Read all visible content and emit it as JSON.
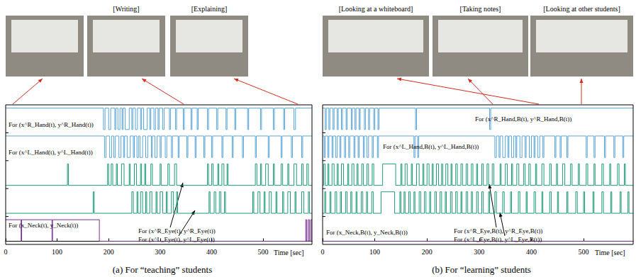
{
  "chart_data": [
    {
      "type": "line",
      "title": "(a) For “teaching” students",
      "xlabel": "Time [sec]",
      "photo_labels": [
        "[Writing]",
        "[Explaining]"
      ],
      "xlim": [
        0,
        595
      ],
      "xticks": [
        0,
        100,
        200,
        300,
        400,
        500
      ],
      "ylim": [
        -0.15,
        1.15
      ],
      "tick_labels": "x",
      "line_style": "step",
      "grid": false,
      "series": [
        {
          "name": "For (x^R_Hand(t), y^R_Hand(t))",
          "color": "#5aa5d6",
          "x": [
            0,
            190,
            193,
            200,
            204,
            212,
            214,
            218,
            222,
            226,
            228,
            232,
            240,
            245,
            247,
            252,
            256,
            262,
            264,
            268,
            275,
            280,
            282,
            288,
            291,
            296,
            298,
            305,
            308,
            318,
            320,
            330,
            332,
            345,
            347,
            360,
            362,
            372,
            374,
            392,
            394,
            410,
            412,
            428,
            430,
            445,
            447,
            470,
            472,
            495,
            497,
            520,
            522,
            540,
            542,
            560,
            563,
            595
          ],
          "values": [
            1,
            0,
            1,
            0,
            1,
            0,
            1,
            0,
            1,
            0,
            1,
            0,
            1,
            0,
            1,
            0,
            1,
            0,
            1,
            0,
            1,
            0,
            1,
            0,
            1,
            0,
            1,
            0,
            1,
            0,
            1,
            0,
            1,
            0,
            1,
            0,
            1,
            0,
            1,
            0,
            1,
            0,
            1,
            0,
            1,
            0,
            1,
            0,
            1,
            0,
            1,
            0,
            1,
            0,
            1,
            0,
            1,
            1
          ]
        },
        {
          "name": "For (x^L_Hand(t), y^L_Hand(t))",
          "color": "#5aa5d6",
          "x": [
            0,
            192,
            195,
            202,
            206,
            210,
            213,
            220,
            224,
            229,
            231,
            236,
            242,
            248,
            250,
            255,
            258,
            261,
            266,
            272,
            276,
            283,
            285,
            290,
            294,
            300,
            302,
            310,
            313,
            322,
            324,
            335,
            337,
            352,
            354,
            368,
            370,
            385,
            387,
            400,
            402,
            420,
            422,
            440,
            442,
            460,
            462,
            485,
            487,
            510,
            512,
            535,
            537,
            555,
            557,
            575,
            577,
            595
          ],
          "values": [
            1,
            0,
            1,
            0,
            1,
            0,
            1,
            0,
            1,
            0,
            1,
            0,
            1,
            0,
            1,
            0,
            1,
            0,
            1,
            0,
            1,
            0,
            1,
            0,
            1,
            0,
            1,
            0,
            1,
            0,
            1,
            0,
            1,
            0,
            1,
            0,
            1,
            0,
            1,
            0,
            1,
            0,
            1,
            0,
            1,
            0,
            1,
            0,
            1,
            0,
            1,
            0,
            1,
            0,
            1,
            0,
            1,
            1
          ]
        },
        {
          "name": "For (x^R_Eye(t), y^R_Eye(t))",
          "color": "#1f9a78",
          "x": [
            0,
            120,
            122,
            198,
            200,
            205,
            208,
            215,
            217,
            225,
            230,
            240,
            242,
            250,
            254,
            262,
            264,
            270,
            272,
            282,
            285,
            300,
            302,
            315,
            318,
            328,
            332,
            392,
            394,
            400,
            403,
            412,
            414,
            420,
            424,
            430,
            432,
            485,
            488,
            495,
            497,
            505,
            510,
            520,
            522,
            535,
            538,
            548,
            550,
            560,
            565,
            575,
            578,
            585,
            588,
            595
          ],
          "values": [
            0,
            1,
            0,
            1,
            0,
            1,
            0,
            1,
            0,
            1,
            0,
            1,
            0,
            1,
            0,
            1,
            0,
            1,
            0,
            1,
            0,
            1,
            0,
            1,
            0,
            1,
            0,
            1,
            0,
            1,
            0,
            1,
            0,
            1,
            0,
            1,
            0,
            1,
            0,
            1,
            0,
            1,
            0,
            1,
            0,
            1,
            0,
            1,
            0,
            1,
            0,
            1,
            0,
            1,
            0,
            0
          ]
        },
        {
          "name": "For (x^L_Eye(t), y^L_Eye(t))",
          "color": "#1f9a78",
          "x": [
            0,
            170,
            172,
            245,
            248,
            255,
            257,
            262,
            266,
            272,
            274,
            280,
            284,
            292,
            294,
            300,
            305,
            312,
            314,
            322,
            326,
            332,
            334,
            395,
            397,
            405,
            408,
            415,
            418,
            425,
            427,
            480,
            482,
            490,
            494,
            502,
            504,
            512,
            516,
            525,
            527,
            538,
            540,
            548,
            553,
            562,
            564,
            575,
            579,
            588,
            590,
            595
          ],
          "values": [
            0,
            1,
            0,
            1,
            0,
            1,
            0,
            1,
            0,
            1,
            0,
            1,
            0,
            1,
            0,
            1,
            0,
            1,
            0,
            1,
            0,
            1,
            0,
            1,
            0,
            1,
            0,
            1,
            0,
            1,
            0,
            1,
            0,
            1,
            0,
            1,
            0,
            1,
            0,
            1,
            0,
            1,
            0,
            1,
            0,
            1,
            0,
            1,
            0,
            1,
            0,
            0
          ]
        },
        {
          "name": "For (x_Neck(t), y_Neck(t))",
          "color": "#7a2a98",
          "x": [
            0,
            30,
            31,
            90,
            91,
            182,
            583,
            585,
            588,
            590,
            593,
            595
          ],
          "values": [
            1,
            0,
            1,
            0,
            1,
            0,
            1,
            0,
            1,
            0,
            1,
            1
          ]
        }
      ]
    },
    {
      "type": "line",
      "title": "(b) For “learning” students",
      "xlabel": "Time [sec]",
      "photo_labels": [
        "[Looking at a whiteboard]",
        "[Taking notes]",
        "[Looking at other students]"
      ],
      "xlim": [
        0,
        595
      ],
      "xticks": [
        0,
        100,
        200,
        300,
        400,
        500
      ],
      "ylim": [
        -0.15,
        1.15
      ],
      "tick_labels": "x",
      "line_style": "step",
      "grid": false,
      "series": [
        {
          "name": "For (x^R_Hand,B(t), y^R_Hand,B(t))",
          "color": "#5aa5d6",
          "x": [
            0,
            5,
            7,
            12,
            14,
            20,
            22,
            28,
            30,
            36,
            38,
            45,
            47,
            55,
            57,
            62,
            64,
            70,
            72,
            80,
            82,
            88,
            90,
            98,
            100,
            106,
            108,
            178,
            180,
            320,
            322,
            595
          ],
          "values": [
            1,
            0,
            1,
            0,
            1,
            0,
            1,
            0,
            1,
            0,
            1,
            0,
            1,
            0,
            1,
            0,
            1,
            0,
            1,
            0,
            1,
            0,
            1,
            0,
            1,
            0,
            1,
            0,
            1,
            0,
            1,
            1
          ]
        },
        {
          "name": "For (x^L_Hand,B(t), y^L_Hand,B(t))",
          "color": "#5aa5d6",
          "x": [
            0,
            3,
            5,
            10,
            12,
            18,
            20,
            25,
            28,
            33,
            35,
            42,
            44,
            50,
            52,
            60,
            62,
            68,
            70,
            78,
            80,
            85,
            88,
            95,
            97,
            105,
            107,
            175,
            177,
            182,
            184,
            330,
            333,
            338,
            340,
            345,
            350,
            355,
            357,
            362,
            366,
            370,
            372,
            378,
            382,
            388,
            390,
            396,
            400,
            405,
            407,
            412,
            416,
            422,
            424,
            445,
            447,
            455,
            457,
            468,
            470,
            505,
            507,
            520,
            522,
            540,
            542,
            558,
            560,
            575,
            577,
            595
          ],
          "values": [
            1,
            0,
            1,
            0,
            1,
            0,
            1,
            0,
            1,
            0,
            1,
            0,
            1,
            0,
            1,
            0,
            1,
            0,
            1,
            0,
            1,
            0,
            1,
            0,
            1,
            0,
            1,
            0,
            1,
            0,
            1,
            0,
            1,
            0,
            1,
            0,
            1,
            0,
            1,
            0,
            1,
            0,
            1,
            0,
            1,
            0,
            1,
            0,
            1,
            0,
            1,
            0,
            1,
            0,
            1,
            0,
            1,
            0,
            1,
            0,
            1,
            0,
            1,
            0,
            1,
            0,
            1,
            0,
            1,
            0,
            1,
            1
          ]
        },
        {
          "name": "For (x^R_Eye,B(t), y^R_Eye,B(t))",
          "color": "#1f9a78",
          "x": [
            0,
            2,
            5,
            10,
            12,
            18,
            22,
            28,
            30,
            36,
            40,
            48,
            50,
            56,
            60,
            66,
            68,
            75,
            78,
            85,
            88,
            95,
            98,
            115,
            140,
            150,
            152,
            158,
            162,
            170,
            172,
            180,
            185,
            192,
            194,
            200,
            204,
            210,
            212,
            218,
            222,
            228,
            230,
            236,
            240,
            246,
            248,
            255,
            258,
            265,
            268,
            275,
            278,
            285,
            288,
            295,
            297,
            305,
            308,
            315,
            318,
            325,
            328,
            340,
            342,
            350,
            354,
            362,
            364,
            372,
            376,
            385,
            388,
            395,
            398,
            408,
            410,
            420,
            424,
            435,
            438,
            448,
            450,
            460,
            464,
            475,
            478,
            490,
            492,
            505,
            508,
            520,
            522,
            535,
            538,
            550,
            552,
            565,
            568,
            578,
            580,
            595
          ],
          "values": [
            0,
            1,
            0,
            1,
            0,
            1,
            0,
            1,
            0,
            1,
            0,
            1,
            0,
            1,
            0,
            1,
            0,
            1,
            0,
            1,
            0,
            1,
            0,
            1,
            0,
            1,
            0,
            1,
            0,
            1,
            0,
            1,
            0,
            1,
            0,
            1,
            0,
            1,
            0,
            1,
            0,
            1,
            0,
            1,
            0,
            1,
            0,
            1,
            0,
            1,
            0,
            1,
            0,
            1,
            0,
            1,
            0,
            1,
            0,
            1,
            0,
            1,
            0,
            1,
            0,
            1,
            0,
            1,
            0,
            1,
            0,
            1,
            0,
            1,
            0,
            1,
            0,
            1,
            0,
            1,
            0,
            1,
            0,
            1,
            0,
            1,
            0,
            1,
            0,
            1,
            0,
            1,
            0,
            1,
            0,
            1,
            0,
            1,
            0,
            1,
            0,
            0
          ]
        },
        {
          "name": "For (x^L_Eye,B(t), y^L_Eye,B(t))",
          "color": "#1f9a78",
          "x": [
            0,
            4,
            6,
            14,
            16,
            24,
            27,
            34,
            36,
            44,
            47,
            54,
            56,
            64,
            66,
            74,
            77,
            84,
            86,
            94,
            97,
            112,
            138,
            148,
            150,
            156,
            158,
            165,
            168,
            175,
            177,
            185,
            188,
            195,
            198,
            205,
            207,
            215,
            218,
            225,
            228,
            235,
            237,
            245,
            248,
            255,
            258,
            265,
            267,
            275,
            278,
            285,
            287,
            295,
            298,
            305,
            308,
            318,
            320,
            330,
            333,
            345,
            348,
            360,
            362,
            375,
            378,
            390,
            392,
            405,
            408,
            420,
            422,
            435,
            438,
            450,
            452,
            468,
            470,
            485,
            488,
            500,
            502,
            518,
            520,
            535,
            538,
            552,
            554,
            570,
            572,
            585,
            587,
            595
          ],
          "values": [
            0,
            1,
            0,
            1,
            0,
            1,
            0,
            1,
            0,
            1,
            0,
            1,
            0,
            1,
            0,
            1,
            0,
            1,
            0,
            1,
            0,
            1,
            0,
            1,
            0,
            1,
            0,
            1,
            0,
            1,
            0,
            1,
            0,
            1,
            0,
            1,
            0,
            1,
            0,
            1,
            0,
            1,
            0,
            1,
            0,
            1,
            0,
            1,
            0,
            1,
            0,
            1,
            0,
            1,
            0,
            1,
            0,
            1,
            0,
            1,
            0,
            1,
            0,
            1,
            0,
            1,
            0,
            1,
            0,
            1,
            0,
            1,
            0,
            1,
            0,
            1,
            0,
            1,
            0,
            1,
            0,
            1,
            0,
            1,
            0,
            1,
            0,
            1,
            0,
            1,
            0,
            1,
            0,
            0
          ]
        },
        {
          "name": "For (x_Neck,B(t), y_Neck,B(t))",
          "color": "#7a2a98",
          "x": [
            0,
            595
          ],
          "values": [
            0,
            0
          ]
        }
      ]
    }
  ]
}
